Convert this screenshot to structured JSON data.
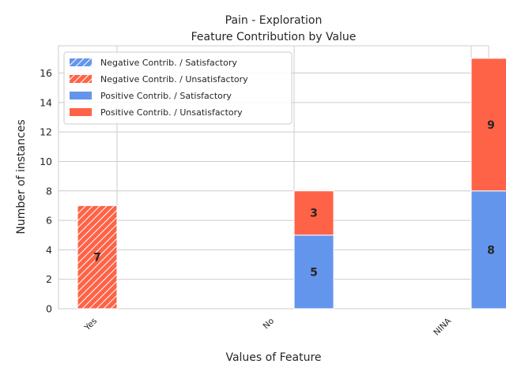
{
  "chart_data": {
    "type": "bar",
    "title": "Pain - Exploration",
    "subtitle": "Feature Contribution by Value",
    "xlabel": "Values of Feature",
    "ylabel": "Number of instances",
    "categories": [
      "Yes",
      "No",
      "NINA"
    ],
    "ylim": [
      0,
      17.85
    ],
    "yticks": [
      0,
      2,
      4,
      6,
      8,
      10,
      12,
      14,
      16
    ],
    "grid": true,
    "legend_position": "top-left",
    "colors": {
      "satisfactory": "#6495ed",
      "unsatisfactory": "#ff6347"
    },
    "series": [
      {
        "name": "Negative Contrib. / Satisfactory",
        "color": "#6495ed",
        "hatch": true,
        "offset": -1,
        "values": [
          0,
          0,
          0
        ],
        "base": [
          0,
          0,
          0
        ]
      },
      {
        "name": "Negative Contrib. / Unsatisfactory",
        "color": "#ff6347",
        "hatch": true,
        "offset": -1,
        "values": [
          7,
          0,
          0
        ],
        "base": [
          0,
          0,
          0
        ]
      },
      {
        "name": "Positive Contrib. / Satisfactory",
        "color": "#6495ed",
        "hatch": false,
        "offset": 0,
        "values": [
          0,
          5,
          8
        ],
        "base": [
          0,
          0,
          0
        ]
      },
      {
        "name": "Positive Contrib. / Unsatisfactory",
        "color": "#ff6347",
        "hatch": false,
        "offset": 0,
        "values": [
          0,
          3,
          9
        ],
        "base": [
          0,
          5,
          8
        ]
      }
    ]
  }
}
